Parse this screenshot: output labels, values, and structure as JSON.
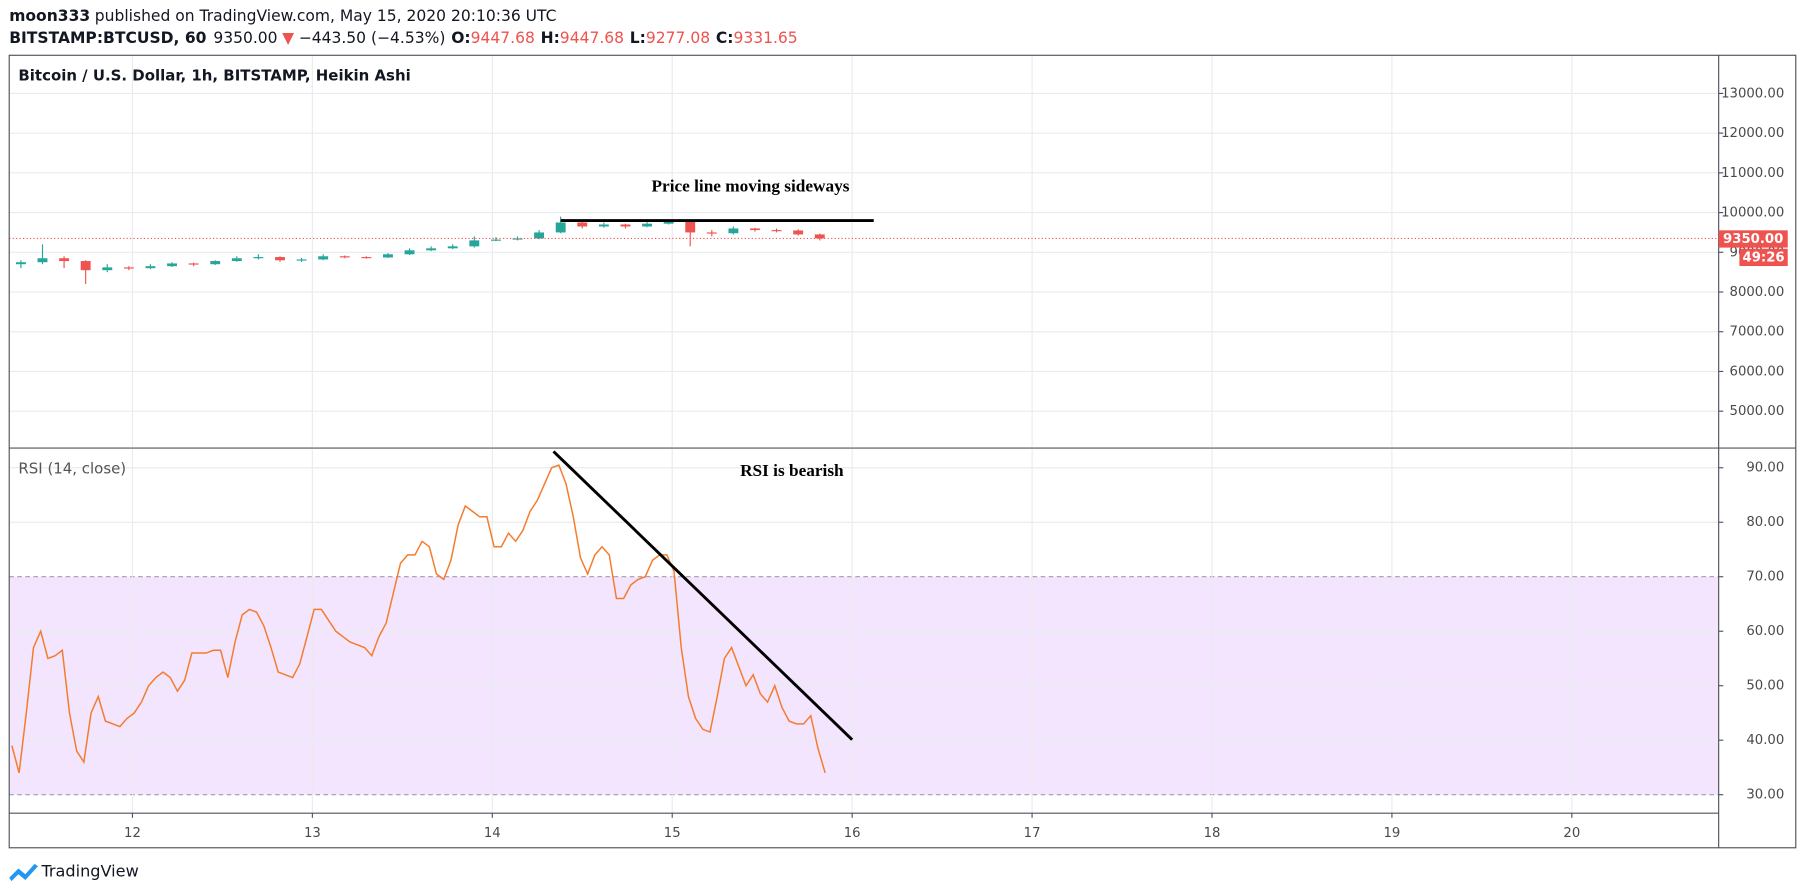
{
  "header": {
    "author": "moon333",
    "published": "published on TradingView.com, May 15, 2020 20:10:36 UTC",
    "symbol": "BITSTAMP:BTCUSD, 60",
    "price": "9350.00",
    "change": "−443.50 (−4.53%)",
    "ohlc": [
      {
        "key": "O:",
        "value": "9447.68"
      },
      {
        "key": "H:",
        "value": "9447.68"
      },
      {
        "key": "L:",
        "value": "9277.08"
      },
      {
        "key": "C:",
        "value": "9331.65"
      }
    ]
  },
  "chart_data": [
    {
      "type": "candlestick",
      "title": "Bitcoin / U.S. Dollar, 1h, BITSTAMP, Heikin Ashi",
      "x": [
        11.38,
        11.5,
        11.62,
        11.74,
        11.86,
        11.98,
        12.1,
        12.22,
        12.34,
        12.46,
        12.58,
        12.7,
        12.82,
        12.94,
        13.06,
        13.18,
        13.3,
        13.42,
        13.54,
        13.66,
        13.78,
        13.9,
        14.02,
        14.14,
        14.26,
        14.38,
        14.5,
        14.62,
        14.74,
        14.86,
        14.98,
        15.1,
        15.22,
        15.34,
        15.46,
        15.58,
        15.7,
        15.82
      ],
      "open": [
        8700,
        8750,
        8850,
        8780,
        8550,
        8620,
        8600,
        8650,
        8720,
        8700,
        8780,
        8850,
        8880,
        8800,
        8820,
        8900,
        8880,
        8870,
        8950,
        9050,
        9100,
        9150,
        9300,
        9320,
        9350,
        9500,
        9750,
        9650,
        9700,
        9650,
        9720,
        9780,
        9500,
        9480,
        9600,
        9560,
        9550,
        9450
      ],
      "high": [
        8800,
        9200,
        8900,
        8800,
        8700,
        8650,
        8700,
        8750,
        8740,
        8800,
        8900,
        8950,
        8900,
        8860,
        8950,
        8920,
        8900,
        8980,
        9100,
        9150,
        9200,
        9400,
        9380,
        9400,
        9560,
        9900,
        9800,
        9750,
        9720,
        9760,
        9820,
        9800,
        9560,
        9650,
        9620,
        9600,
        9580,
        9470
      ],
      "low": [
        8600,
        8700,
        8600,
        8200,
        8500,
        8550,
        8580,
        8630,
        8650,
        8680,
        8760,
        8820,
        8760,
        8760,
        8800,
        8850,
        8840,
        8860,
        8930,
        9030,
        9080,
        9120,
        9280,
        9300,
        9330,
        9480,
        9600,
        9620,
        9600,
        9630,
        9700,
        9150,
        9400,
        9450,
        9520,
        9500,
        9420,
        9300
      ],
      "close": [
        8750,
        8850,
        8780,
        8550,
        8620,
        8600,
        8650,
        8720,
        8700,
        8780,
        8850,
        8880,
        8800,
        8820,
        8900,
        8880,
        8870,
        8950,
        9050,
        9100,
        9150,
        9300,
        9320,
        9350,
        9500,
        9750,
        9650,
        9700,
        9650,
        9720,
        9780,
        9500,
        9480,
        9600,
        9560,
        9550,
        9450,
        9350
      ],
      "up_color": "#26a69a",
      "down_color": "#ef5350",
      "xlim": [
        11.315,
        20.816
      ],
      "ylim": [
        4100,
        13960
      ],
      "xticks": [
        12,
        13,
        14,
        15,
        16,
        17,
        18,
        19,
        20
      ],
      "yticks": [
        {
          "value": 5000,
          "label": "5000.00"
        },
        {
          "value": 6000,
          "label": "6000.00"
        },
        {
          "value": 7000,
          "label": "7000.00"
        },
        {
          "value": 8000,
          "label": "8000.00"
        },
        {
          "value": 9000,
          "label": "9000.00"
        },
        {
          "value": 10000,
          "label": "10000.00"
        },
        {
          "value": 11000,
          "label": "11000.00"
        },
        {
          "value": 12000,
          "label": "12000.00"
        },
        {
          "value": 13000,
          "label": "13000.00"
        }
      ],
      "grid": true,
      "last_price": {
        "value": 9350,
        "label": "9350.00"
      },
      "countdown": "49:26",
      "annotations": [
        {
          "text": "Price line moving sideways",
          "x": 15.435,
          "y": 10625
        }
      ],
      "trendlines": [
        {
          "x": [
            14.38,
            16.12
          ],
          "y": [
            9800,
            9800
          ],
          "color": "#000000"
        }
      ]
    },
    {
      "type": "line",
      "title": "RSI (14, close)",
      "series": [
        {
          "color": "#f57c2e",
          "x": [
            11.33,
            11.37,
            11.41,
            11.45,
            11.49,
            11.53,
            11.57,
            11.61,
            11.65,
            11.69,
            11.73,
            11.77,
            11.81,
            11.85,
            11.89,
            11.93,
            11.97,
            12.01,
            12.05,
            12.09,
            12.13,
            12.17,
            12.21,
            12.25,
            12.29,
            12.33,
            12.37,
            12.41,
            12.45,
            12.49,
            12.53,
            12.57,
            12.61,
            12.65,
            12.69,
            12.73,
            12.77,
            12.81,
            12.85,
            12.89,
            12.93,
            12.97,
            13.01,
            13.05,
            13.09,
            13.13,
            13.17,
            13.21,
            13.25,
            13.29,
            13.33,
            13.37,
            13.41,
            13.45,
            13.49,
            13.53,
            13.57,
            13.61,
            13.65,
            13.69,
            13.73,
            13.77,
            13.81,
            13.85,
            13.89,
            13.93,
            13.97,
            14.01,
            14.05,
            14.09,
            14.13,
            14.17,
            14.21,
            14.25,
            14.29,
            14.33,
            14.37,
            14.41,
            14.45,
            14.49,
            14.53,
            14.57,
            14.61,
            14.65,
            14.69,
            14.73,
            14.77,
            14.81,
            14.85,
            14.89,
            14.93,
            14.97,
            15.01,
            15.05,
            15.09,
            15.13,
            15.17,
            15.21,
            15.25,
            15.29,
            15.33,
            15.37,
            15.41,
            15.45,
            15.49,
            15.53,
            15.57,
            15.61,
            15.65,
            15.69,
            15.73,
            15.77,
            15.81,
            15.85
          ],
          "values": [
            39,
            34,
            45,
            57,
            60,
            55,
            55.5,
            56.5,
            45,
            38,
            36,
            45,
            48,
            43.5,
            43,
            42.5,
            44,
            45,
            47,
            50,
            51.5,
            52.5,
            51.5,
            49,
            51,
            56,
            56,
            56,
            56.5,
            56.5,
            51.5,
            58,
            63,
            64,
            63.5,
            61,
            57,
            52.5,
            52,
            51.5,
            54,
            59,
            64,
            64,
            62,
            60,
            59,
            58,
            57.5,
            57,
            55.5,
            59,
            61.5,
            67,
            72.5,
            74,
            74,
            76.5,
            75.5,
            70.5,
            69.5,
            73,
            79.5,
            83,
            82,
            81,
            81,
            75.5,
            75.5,
            78,
            76.5,
            78.5,
            82,
            84,
            87,
            90,
            90.5,
            87,
            81,
            73.5,
            70.5,
            74,
            75.5,
            74,
            66,
            66,
            68.5,
            69.5,
            70,
            73,
            74,
            74,
            71,
            57,
            48,
            44,
            42,
            41.5,
            48,
            55,
            57,
            53.5,
            50,
            52,
            48.5,
            47,
            50,
            46,
            43.5,
            43,
            43,
            44.5,
            38.5,
            34
          ]
        }
      ],
      "xlim": [
        11.315,
        20.816
      ],
      "ylim": [
        26.6,
        93.4
      ],
      "yticks": [
        {
          "value": 30,
          "label": "30.00"
        },
        {
          "value": 40,
          "label": "40.00"
        },
        {
          "value": 50,
          "label": "50.00"
        },
        {
          "value": 60,
          "label": "60.00"
        },
        {
          "value": 70,
          "label": "70.00"
        },
        {
          "value": 80,
          "label": "80.00"
        },
        {
          "value": 90,
          "label": "90.00"
        }
      ],
      "grid": true,
      "band": [
        30,
        70
      ],
      "band_color": "#f3e5fd",
      "annotations": [
        {
          "text": "RSI is bearish",
          "x": 15.665,
          "y": 89.2
        }
      ],
      "trendlines": [
        {
          "x": [
            14.34,
            16.0
          ],
          "y": [
            93,
            40.1
          ],
          "color": "#000000"
        }
      ]
    }
  ],
  "footer": "TradingView"
}
